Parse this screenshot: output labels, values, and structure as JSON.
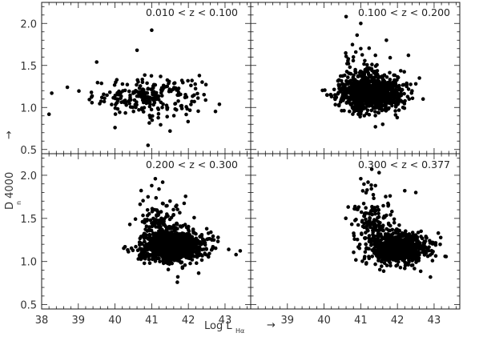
{
  "chart_data": [
    {
      "type": "scatter",
      "annotation": "0.010 < z < 0.100",
      "xlim": [
        38,
        43.7
      ],
      "ylim": [
        0.45,
        2.25
      ],
      "clusters": [
        {
          "center": [
            40.9,
            1.13
          ],
          "spread": [
            0.75,
            0.11
          ],
          "count": 230
        }
      ],
      "points": [
        [
          38.2,
          0.92
        ],
        [
          41.0,
          1.92
        ],
        [
          40.9,
          0.55
        ],
        [
          40.6,
          1.68
        ],
        [
          39.5,
          1.54
        ],
        [
          42.3,
          1.38
        ],
        [
          42.1,
          1.32
        ],
        [
          38.7,
          1.24
        ],
        [
          40.0,
          0.76
        ],
        [
          41.5,
          0.72
        ]
      ]
    },
    {
      "type": "scatter",
      "annotation": "0.100 < z < 0.200",
      "xlim": [
        38,
        43.7
      ],
      "ylim": [
        0.45,
        2.25
      ],
      "clusters": [
        {
          "center": [
            41.25,
            1.17
          ],
          "spread": [
            0.42,
            0.1
          ],
          "count": 950
        },
        {
          "center": [
            41.0,
            1.4
          ],
          "spread": [
            0.35,
            0.14
          ],
          "count": 80
        }
      ],
      "points": [
        [
          40.6,
          2.08
        ],
        [
          41.0,
          2.0
        ],
        [
          40.9,
          1.86
        ],
        [
          41.7,
          1.8
        ],
        [
          41.0,
          1.7
        ],
        [
          42.3,
          1.62
        ],
        [
          41.4,
          1.62
        ],
        [
          40.8,
          1.6
        ],
        [
          41.6,
          0.8
        ],
        [
          41.4,
          0.77
        ],
        [
          42.5,
          1.28
        ],
        [
          42.6,
          1.35
        ],
        [
          40.3,
          1.15
        ],
        [
          42.7,
          1.1
        ]
      ]
    },
    {
      "type": "scatter",
      "annotation": "0.200 < z < 0.300",
      "xlim": [
        38,
        43.7
      ],
      "ylim": [
        0.45,
        2.25
      ],
      "clusters": [
        {
          "center": [
            41.55,
            1.18
          ],
          "spread": [
            0.42,
            0.09
          ],
          "count": 1000
        },
        {
          "center": [
            41.2,
            1.45
          ],
          "spread": [
            0.3,
            0.15
          ],
          "count": 110
        }
      ],
      "points": [
        [
          41.1,
          1.96
        ],
        [
          41.3,
          1.92
        ],
        [
          41.0,
          1.88
        ],
        [
          41.2,
          1.84
        ],
        [
          40.9,
          1.75
        ],
        [
          41.5,
          1.7
        ],
        [
          42.5,
          1.38
        ],
        [
          43.3,
          1.08
        ],
        [
          43.1,
          1.14
        ],
        [
          41.7,
          0.76
        ],
        [
          40.8,
          0.98
        ]
      ]
    },
    {
      "type": "scatter",
      "annotation": "0.300 < z < 0.377",
      "xlim": [
        38,
        43.7
      ],
      "ylim": [
        0.45,
        2.25
      ],
      "clusters": [
        {
          "center": [
            42.05,
            1.15
          ],
          "spread": [
            0.38,
            0.09
          ],
          "count": 850
        },
        {
          "center": [
            41.3,
            1.42
          ],
          "spread": [
            0.28,
            0.18
          ],
          "count": 150
        }
      ],
      "points": [
        [
          41.3,
          2.07
        ],
        [
          41.5,
          2.03
        ],
        [
          41.0,
          1.96
        ],
        [
          41.2,
          1.92
        ],
        [
          41.4,
          1.88
        ],
        [
          42.2,
          1.82
        ],
        [
          42.5,
          1.8
        ],
        [
          41.8,
          1.76
        ],
        [
          43.3,
          1.06
        ],
        [
          42.9,
          0.82
        ],
        [
          42.2,
          0.92
        ]
      ]
    }
  ],
  "axes": {
    "x_ticks": [
      "38",
      "39",
      "40",
      "41",
      "42",
      "43"
    ],
    "y_ticks": [
      "0.5",
      "1.0",
      "1.5",
      "2.0"
    ],
    "xlabel": {
      "main": "Log L",
      "sub": "Hα",
      "arrow": "→"
    },
    "ylabel": {
      "main": "D 4000",
      "sub": "n",
      "arrow": "→"
    }
  }
}
